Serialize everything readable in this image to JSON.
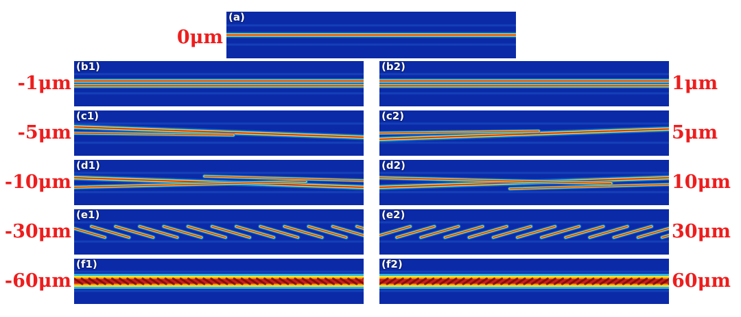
{
  "figure": {
    "panel_a": {
      "label": "(a)",
      "offset": "0μm",
      "tilt_per_unit": 0
    },
    "left_column": [
      {
        "label": "(b1)",
        "offset": "-1μm",
        "tilt_per_unit": -1
      },
      {
        "label": "(c1)",
        "offset": "-5μm",
        "tilt_per_unit": -5
      },
      {
        "label": "(d1)",
        "offset": "-10μm",
        "tilt_per_unit": -10
      },
      {
        "label": "(e1)",
        "offset": "-30μm",
        "tilt_per_unit": -30
      },
      {
        "label": "(f1)",
        "offset": "-60μm",
        "tilt_per_unit": -60
      }
    ],
    "right_column": [
      {
        "label": "(b2)",
        "offset": "1μm",
        "tilt_per_unit": 1
      },
      {
        "label": "(c2)",
        "offset": "5μm",
        "tilt_per_unit": 5
      },
      {
        "label": "(d2)",
        "offset": "10μm",
        "tilt_per_unit": 10
      },
      {
        "label": "(e2)",
        "offset": "30μm",
        "tilt_per_unit": 30
      },
      {
        "label": "(f2)",
        "offset": "60μm",
        "tilt_per_unit": 60
      }
    ],
    "colors": {
      "background": "#0b2aa8",
      "cyan": "#29c6f0",
      "yellow": "#f5e21a",
      "orange": "#f7941d",
      "red": "#c81e1e",
      "dark_red": "#7a0b0b",
      "offset_label": "#ee1d1d"
    }
  }
}
